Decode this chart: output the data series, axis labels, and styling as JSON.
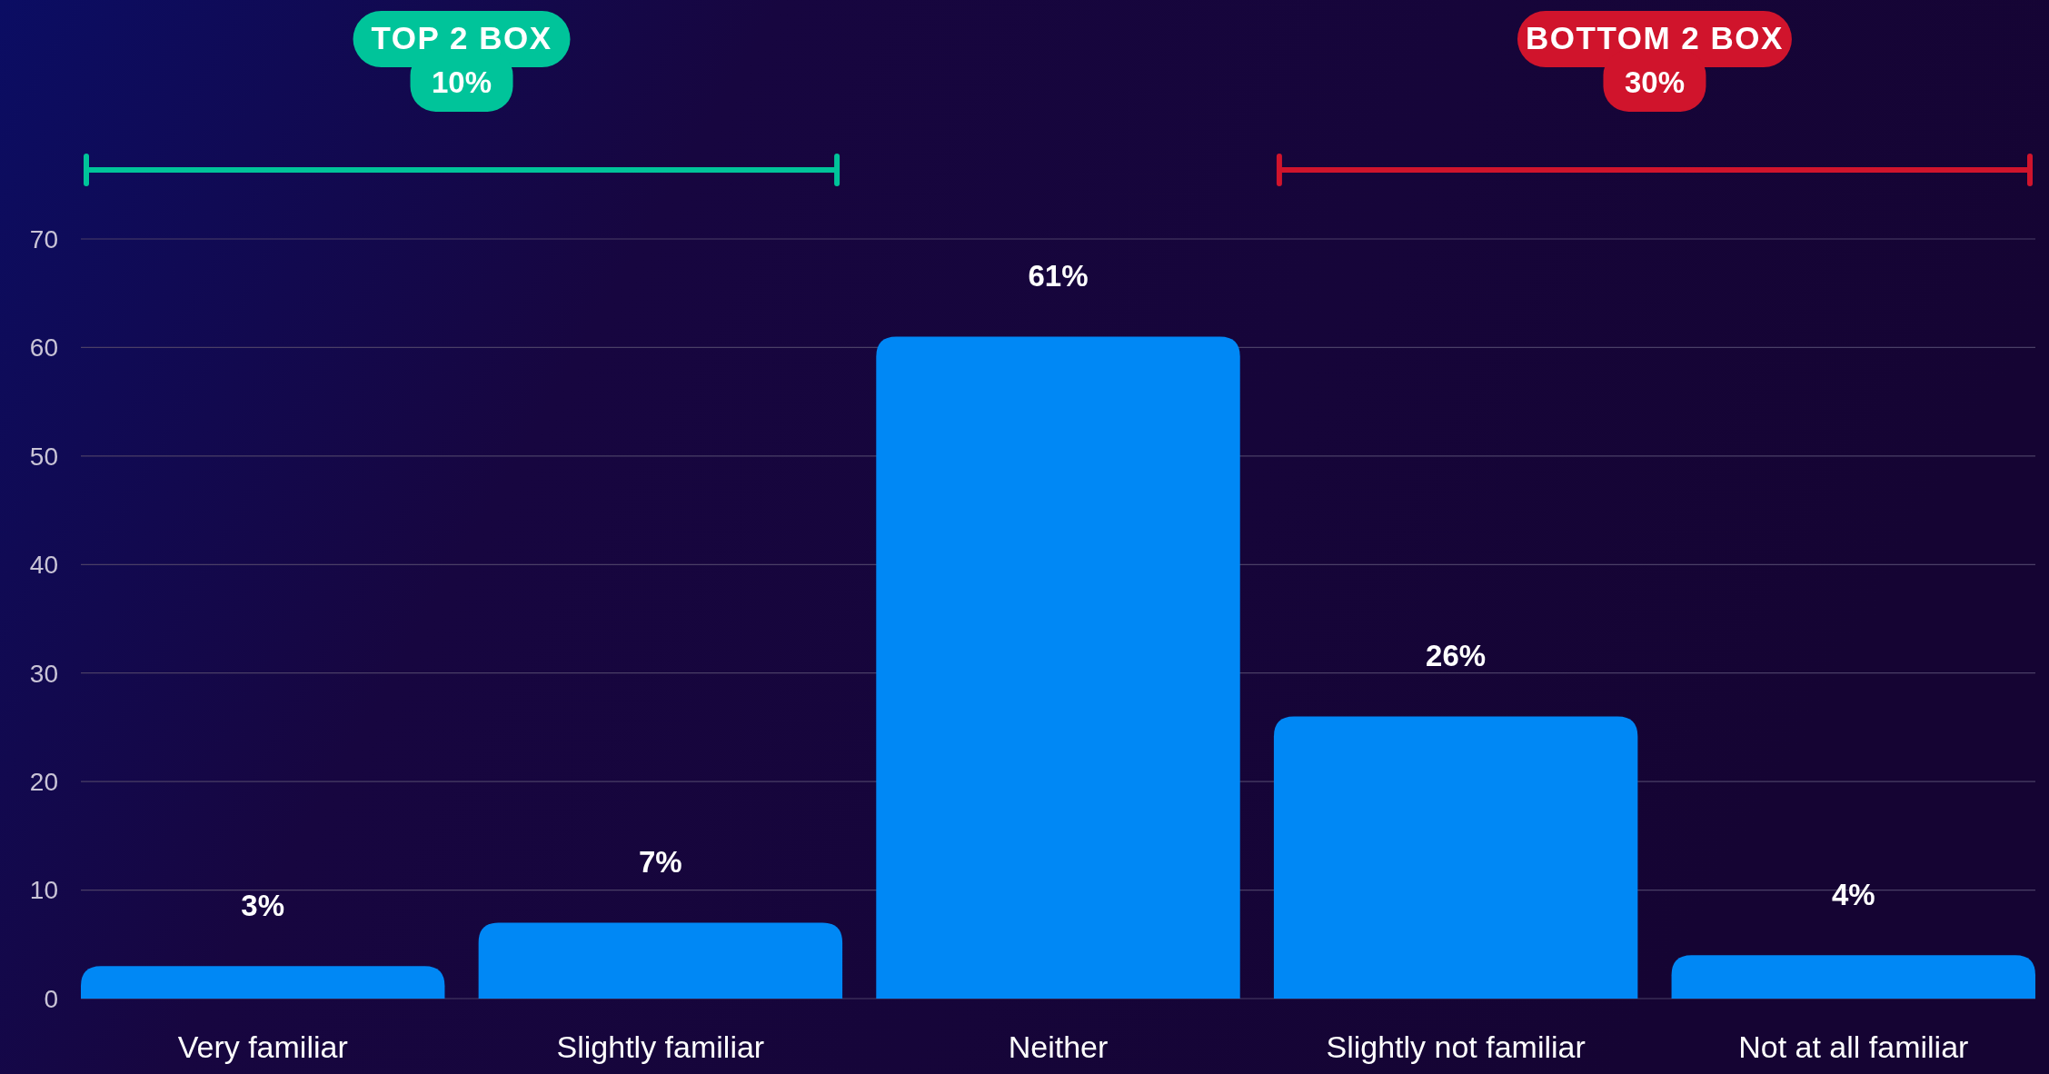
{
  "chart_data": {
    "type": "bar",
    "categories": [
      "Very familiar",
      "Slightly familiar",
      "Neither",
      "Slightly not familiar",
      "Not at all familiar"
    ],
    "values": [
      3,
      7,
      61,
      26,
      4
    ],
    "value_labels": [
      "3%",
      "7%",
      "61%",
      "26%",
      "4%"
    ],
    "color": "#0088f5",
    "ylim": [
      0,
      70
    ],
    "yticks": [
      0,
      10,
      20,
      30,
      40,
      50,
      60,
      70
    ],
    "grid": "y",
    "annotations": [
      "TOP 2 BOX 10%",
      "BOTTOM 2 BOX 30%"
    ]
  }
}
